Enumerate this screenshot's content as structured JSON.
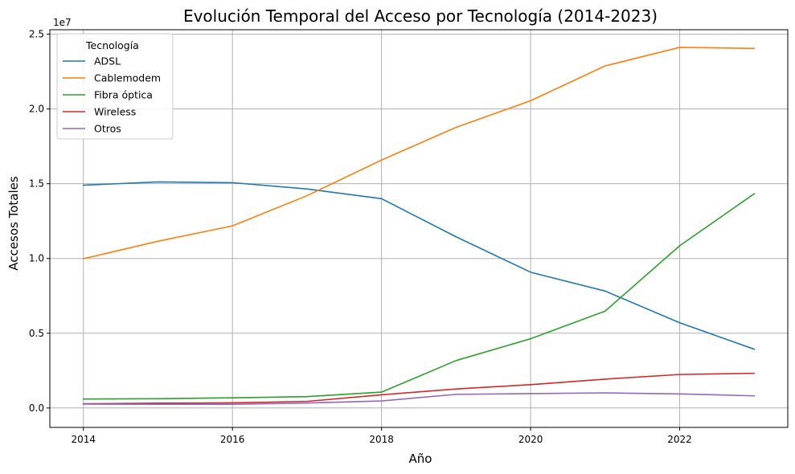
{
  "chart_data": {
    "type": "line",
    "title": "Evolución Temporal del Acceso por Tecnología (2014-2023)",
    "xlabel": "Año",
    "ylabel": "Accesos Totales",
    "y_offset_label": "1e7",
    "xlim": [
      2013.55,
      2023.45
    ],
    "ylim": [
      -1300000,
      25300000
    ],
    "x_ticks": [
      2014,
      2016,
      2018,
      2020,
      2022
    ],
    "y_ticks": [
      0,
      5000000,
      10000000,
      15000000,
      20000000,
      25000000
    ],
    "y_tick_labels": [
      "0.0",
      "0.5",
      "1.0",
      "1.5",
      "2.0",
      "2.5"
    ],
    "grid": true,
    "legend": {
      "title": "Tecnología",
      "position": "top-left"
    },
    "x": [
      2014,
      2015,
      2016,
      2017,
      2018,
      2019,
      2020,
      2021,
      2022,
      2023
    ],
    "series": [
      {
        "name": "ADSL",
        "color": "#1f77b4",
        "values": [
          14900000,
          15120000,
          15070000,
          14650000,
          14000000,
          11450000,
          9080000,
          7820000,
          5700000,
          3930000
        ]
      },
      {
        "name": "Cablemodem",
        "color": "#ff7f0e",
        "values": [
          9980000,
          11150000,
          12180000,
          14200000,
          16580000,
          18770000,
          20550000,
          22880000,
          24120000,
          24050000
        ]
      },
      {
        "name": "Fibra óptica",
        "color": "#2ca02c",
        "values": [
          600000,
          620000,
          680000,
          760000,
          1060000,
          3170000,
          4630000,
          6480000,
          10850000,
          14330000
        ]
      },
      {
        "name": "Wireless",
        "color": "#d62728",
        "values": [
          280000,
          320000,
          340000,
          440000,
          880000,
          1270000,
          1560000,
          1930000,
          2240000,
          2320000
        ]
      },
      {
        "name": "Otros",
        "color": "#9467bd",
        "values": [
          260000,
          250000,
          250000,
          330000,
          470000,
          910000,
          960000,
          1010000,
          940000,
          810000
        ]
      }
    ]
  }
}
